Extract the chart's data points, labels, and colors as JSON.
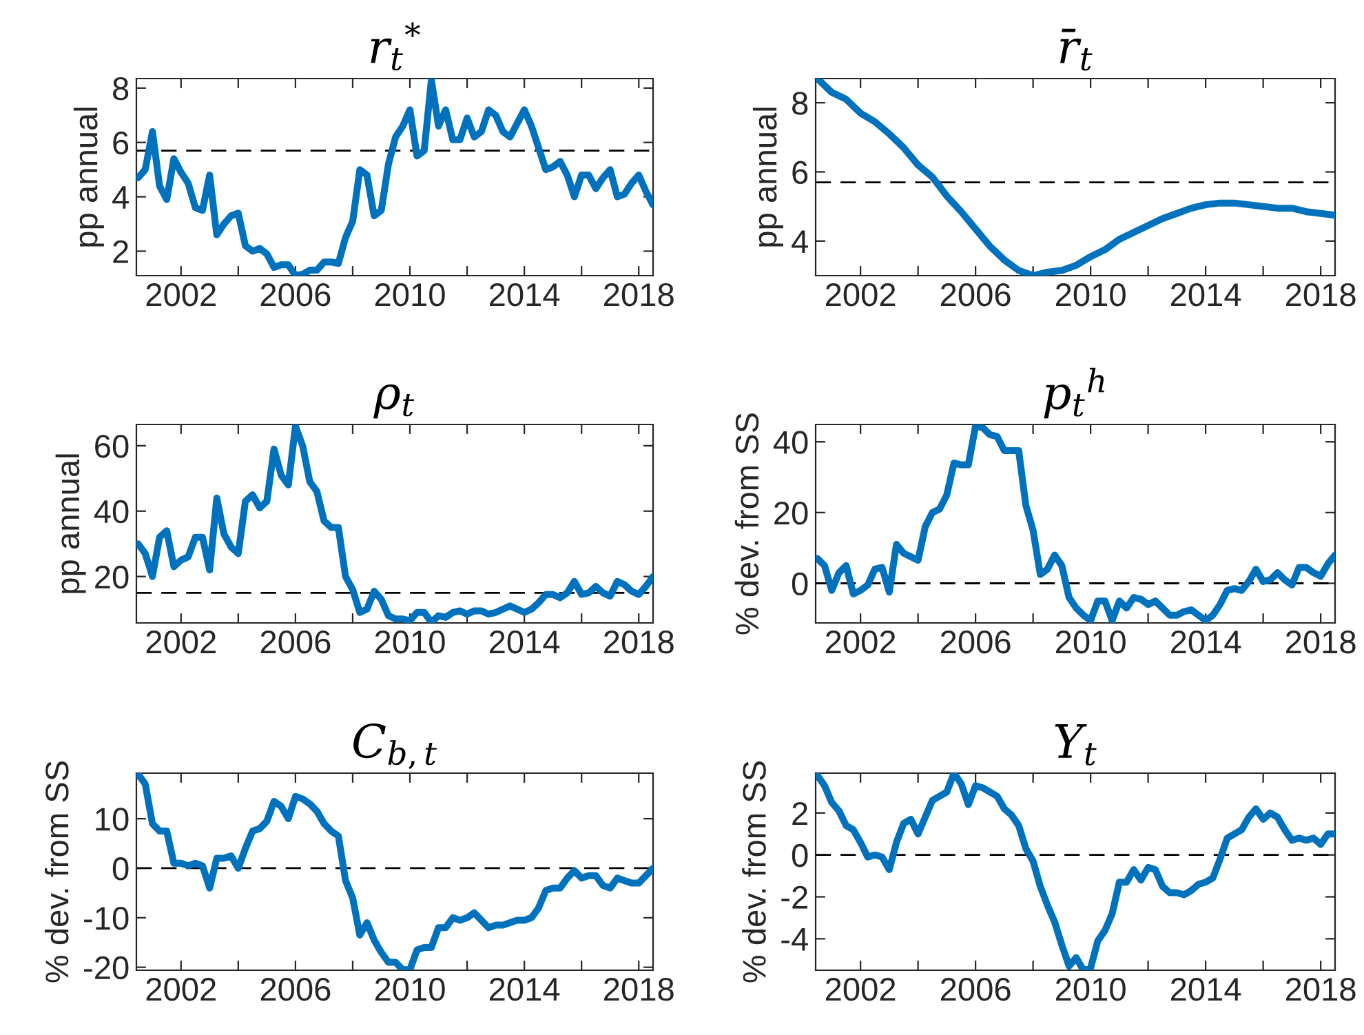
{
  "chart_data": [
    {
      "type": "line",
      "title": "r$_{t}$$^{*}$",
      "ylabel": "pp annual",
      "xlim": [
        2000.44,
        2018.5
      ],
      "ylim": [
        1.1,
        8.35
      ],
      "yticks": [
        2,
        4,
        6,
        8
      ],
      "xticks": [
        2002,
        {
          "value": 2004,
          "label": null
        },
        2006,
        {
          "value": 2008,
          "label": null
        },
        2010,
        {
          "value": 2012,
          "label": null
        },
        2014,
        {
          "value": 2016,
          "label": null
        },
        2018
      ],
      "grid": false,
      "line_style": "solid",
      "marker": "none",
      "ref_lines": [
        {
          "axis": "y",
          "value": 5.7,
          "color": "#000000",
          "line_style": "dashed"
        }
      ],
      "x": [
        2000.5,
        2000.75,
        2001,
        2001.25,
        2001.5,
        2001.75,
        2002,
        2002.25,
        2002.5,
        2002.75,
        2003,
        2003.25,
        2003.5,
        2003.75,
        2004,
        2004.25,
        2004.5,
        2004.75,
        2005,
        2005.25,
        2005.5,
        2005.75,
        2006,
        2006.25,
        2006.5,
        2006.75,
        2007,
        2007.25,
        2007.5,
        2007.75,
        2008,
        2008.25,
        2008.5,
        2008.75,
        2009,
        2009.25,
        2009.5,
        2009.75,
        2010,
        2010.25,
        2010.5,
        2010.75,
        2011,
        2011.25,
        2011.5,
        2011.75,
        2012,
        2012.25,
        2012.5,
        2012.75,
        2013,
        2013.25,
        2013.5,
        2013.75,
        2014,
        2014.25,
        2014.5,
        2014.75,
        2015,
        2015.25,
        2015.5,
        2015.75,
        2016,
        2016.25,
        2016.5,
        2016.75,
        2017,
        2017.25,
        2017.5,
        2017.75,
        2018,
        2018.25,
        2018.5
      ],
      "series": [
        {
          "color": "#0072bd",
          "values": [
            4.7,
            5.0,
            6.4,
            4.4,
            3.9,
            5.4,
            4.9,
            4.5,
            3.6,
            3.5,
            4.8,
            2.6,
            3.0,
            3.3,
            3.4,
            2.2,
            2.0,
            2.1,
            1.9,
            1.4,
            1.5,
            1.5,
            1.1,
            1.15,
            1.3,
            1.3,
            1.6,
            1.6,
            1.55,
            2.5,
            3.1,
            5.0,
            4.8,
            3.3,
            3.5,
            5.2,
            6.2,
            6.6,
            7.2,
            5.5,
            5.7,
            8.3,
            6.6,
            7.2,
            6.1,
            6.1,
            6.9,
            6.2,
            6.4,
            7.2,
            7.0,
            6.4,
            6.2,
            6.7,
            7.2,
            6.6,
            5.8,
            5.0,
            5.1,
            5.3,
            4.8,
            4.0,
            4.8,
            4.8,
            4.3,
            4.7,
            5.0,
            4.0,
            4.1,
            4.5,
            4.8,
            4.2,
            3.7
          ]
        }
      ]
    },
    {
      "type": "line",
      "title": "r̄$_{t}$",
      "ylabel": "pp annual",
      "xlim": [
        2000.44,
        2018.5
      ],
      "ylim": [
        3.0,
        8.7
      ],
      "yticks": [
        4,
        6,
        8
      ],
      "xticks": [
        2002,
        {
          "value": 2004,
          "label": null
        },
        2006,
        {
          "value": 2008,
          "label": null
        },
        2010,
        {
          "value": 2012,
          "label": null
        },
        2014,
        {
          "value": 2016,
          "label": null
        },
        2018
      ],
      "grid": false,
      "line_style": "solid",
      "marker": "none",
      "ref_lines": [
        {
          "axis": "y",
          "value": 5.7,
          "color": "#000000",
          "line_style": "dashed"
        }
      ],
      "x": [
        2000.5,
        2001,
        2001.5,
        2002,
        2002.5,
        2003,
        2003.5,
        2004,
        2004.5,
        2005,
        2005.5,
        2006,
        2006.5,
        2007,
        2007.5,
        2008,
        2008.5,
        2009,
        2009.5,
        2010,
        2010.5,
        2011,
        2011.5,
        2012,
        2012.5,
        2013,
        2013.5,
        2014,
        2014.5,
        2015,
        2015.5,
        2016,
        2016.5,
        2017,
        2017.5,
        2018,
        2018.5
      ],
      "series": [
        {
          "color": "#0072bd",
          "values": [
            8.7,
            8.3,
            8.1,
            7.7,
            7.45,
            7.1,
            6.7,
            6.2,
            5.85,
            5.3,
            4.85,
            4.35,
            3.85,
            3.45,
            3.15,
            3.0,
            3.1,
            3.15,
            3.3,
            3.55,
            3.75,
            4.05,
            4.25,
            4.45,
            4.65,
            4.8,
            4.95,
            5.05,
            5.1,
            5.1,
            5.05,
            5.0,
            4.95,
            4.95,
            4.85,
            4.8,
            4.75
          ]
        }
      ]
    },
    {
      "type": "line",
      "title": "ρ$_{t}$",
      "ylabel": "pp annual",
      "xlim": [
        2000.44,
        2018.5
      ],
      "ylim": [
        5.8,
        66.5
      ],
      "yticks": [
        20,
        40,
        60
      ],
      "xticks": [
        2002,
        {
          "value": 2004,
          "label": null
        },
        2006,
        {
          "value": 2008,
          "label": null
        },
        2010,
        {
          "value": 2012,
          "label": null
        },
        2014,
        {
          "value": 2016,
          "label": null
        },
        2018
      ],
      "grid": false,
      "line_style": "solid",
      "marker": "none",
      "ref_lines": [
        {
          "axis": "y",
          "value": 15,
          "color": "#000000",
          "line_style": "dashed"
        }
      ],
      "x": [
        2000.5,
        2000.75,
        2001,
        2001.25,
        2001.5,
        2001.75,
        2002,
        2002.25,
        2002.5,
        2002.75,
        2003,
        2003.25,
        2003.5,
        2003.75,
        2004,
        2004.25,
        2004.5,
        2004.75,
        2005,
        2005.25,
        2005.5,
        2005.75,
        2006,
        2006.25,
        2006.5,
        2006.75,
        2007,
        2007.25,
        2007.5,
        2007.75,
        2008,
        2008.25,
        2008.5,
        2008.75,
        2009,
        2009.25,
        2009.5,
        2009.75,
        2010,
        2010.25,
        2010.5,
        2010.75,
        2011,
        2011.25,
        2011.5,
        2011.75,
        2012,
        2012.25,
        2012.5,
        2012.75,
        2013,
        2013.25,
        2013.5,
        2013.75,
        2014,
        2014.25,
        2014.5,
        2014.75,
        2015,
        2015.25,
        2015.5,
        2015.75,
        2016,
        2016.25,
        2016.5,
        2016.75,
        2017,
        2017.25,
        2017.5,
        2017.75,
        2018,
        2018.25,
        2018.5
      ],
      "series": [
        {
          "color": "#0072bd",
          "values": [
            30,
            27,
            20,
            32,
            34,
            23,
            25,
            26,
            32,
            32,
            22,
            44,
            33,
            29,
            27,
            43,
            45,
            41,
            43,
            59,
            51,
            48,
            66,
            60,
            49,
            46,
            37,
            35,
            35,
            20,
            16,
            9,
            10,
            15.5,
            13,
            8,
            7,
            7,
            6.5,
            9,
            9,
            6,
            8,
            7.5,
            9,
            9.5,
            8.5,
            9.5,
            9.5,
            8.5,
            9,
            10,
            11,
            10,
            9,
            10,
            12,
            14.5,
            14.5,
            13.5,
            15,
            18.5,
            14.5,
            15,
            17,
            15,
            14,
            18.5,
            17.5,
            15.5,
            14.5,
            17,
            20
          ]
        }
      ]
    },
    {
      "type": "line",
      "title": "p$_{t}$$^{h}$",
      "ylabel": "% dev. from SS",
      "xlim": [
        2000.44,
        2018.5
      ],
      "ylim": [
        -11.2,
        44.9
      ],
      "yticks": [
        0,
        20,
        40
      ],
      "xticks": [
        2002,
        {
          "value": 2004,
          "label": null
        },
        2006,
        {
          "value": 2008,
          "label": null
        },
        2010,
        {
          "value": 2012,
          "label": null
        },
        2014,
        {
          "value": 2016,
          "label": null
        },
        2018
      ],
      "grid": false,
      "line_style": "solid",
      "marker": "none",
      "ref_lines": [
        {
          "axis": "y",
          "value": 0,
          "color": "#000000",
          "line_style": "dashed"
        }
      ],
      "x": [
        2000.5,
        2000.75,
        2001,
        2001.25,
        2001.5,
        2001.75,
        2002,
        2002.25,
        2002.5,
        2002.75,
        2003,
        2003.25,
        2003.5,
        2003.75,
        2004,
        2004.25,
        2004.5,
        2004.75,
        2005,
        2005.25,
        2005.5,
        2005.75,
        2006,
        2006.25,
        2006.5,
        2006.75,
        2007,
        2007.25,
        2007.5,
        2007.75,
        2008,
        2008.25,
        2008.5,
        2008.75,
        2009,
        2009.25,
        2009.5,
        2009.75,
        2010,
        2010.25,
        2010.5,
        2010.75,
        2011,
        2011.25,
        2011.5,
        2011.75,
        2012,
        2012.25,
        2012.5,
        2012.75,
        2013,
        2013.25,
        2013.5,
        2013.75,
        2014,
        2014.25,
        2014.5,
        2014.75,
        2015,
        2015.25,
        2015.5,
        2015.75,
        2016,
        2016.25,
        2016.5,
        2016.75,
        2017,
        2017.25,
        2017.5,
        2017.75,
        2018,
        2018.25,
        2018.5
      ],
      "series": [
        {
          "color": "#0072bd",
          "values": [
            7,
            5,
            -2,
            3,
            5,
            -3,
            -2,
            -0.5,
            4,
            4.5,
            -2.5,
            11,
            8.5,
            7.5,
            6.5,
            16,
            20,
            21,
            25,
            34,
            33.5,
            33.5,
            44.5,
            44,
            42,
            41.5,
            37.5,
            37.5,
            37.5,
            22,
            15,
            2.5,
            4,
            8,
            5,
            -4,
            -7,
            -9,
            -10.5,
            -5,
            -5,
            -10.5,
            -5,
            -7,
            -4,
            -4.5,
            -6,
            -5,
            -7,
            -9,
            -9,
            -8,
            -7.5,
            -9,
            -10.5,
            -9,
            -6,
            -2,
            -1.5,
            -2,
            0.5,
            4,
            0.5,
            1,
            3,
            1,
            -0.5,
            4.5,
            4.5,
            3,
            2,
            5.5,
            8
          ]
        }
      ]
    },
    {
      "type": "line",
      "title": "C$_{b,t}$",
      "ylabel": "% dev. from SS",
      "xlim": [
        2000.44,
        2018.5
      ],
      "ylim": [
        -20.6,
        19.2
      ],
      "yticks": [
        -20,
        -10,
        0,
        10
      ],
      "xticks": [
        2002,
        {
          "value": 2004,
          "label": null
        },
        2006,
        {
          "value": 2008,
          "label": null
        },
        2010,
        {
          "value": 2012,
          "label": null
        },
        2014,
        {
          "value": 2016,
          "label": null
        },
        2018
      ],
      "grid": false,
      "line_style": "solid",
      "marker": "none",
      "ref_lines": [
        {
          "axis": "y",
          "value": 0,
          "color": "#000000",
          "line_style": "dashed"
        }
      ],
      "x": [
        2000.5,
        2000.75,
        2001,
        2001.25,
        2001.5,
        2001.75,
        2002,
        2002.25,
        2002.5,
        2002.75,
        2003,
        2003.25,
        2003.5,
        2003.75,
        2004,
        2004.25,
        2004.5,
        2004.75,
        2005,
        2005.25,
        2005.5,
        2005.75,
        2006,
        2006.25,
        2006.5,
        2006.75,
        2007,
        2007.25,
        2007.5,
        2007.75,
        2008,
        2008.25,
        2008.5,
        2008.75,
        2009,
        2009.25,
        2009.5,
        2009.75,
        2010,
        2010.25,
        2010.5,
        2010.75,
        2011,
        2011.25,
        2011.5,
        2011.75,
        2012,
        2012.25,
        2012.5,
        2012.75,
        2013,
        2013.25,
        2013.5,
        2013.75,
        2014,
        2014.25,
        2014.5,
        2014.75,
        2015,
        2015.25,
        2015.5,
        2015.75,
        2016,
        2016.25,
        2016.5,
        2016.75,
        2017,
        2017.25,
        2017.5,
        2017.75,
        2018,
        2018.25,
        2018.5
      ],
      "series": [
        {
          "color": "#0072bd",
          "values": [
            19,
            17,
            9,
            7.5,
            7.5,
            1,
            1,
            0.5,
            1,
            0.5,
            -4,
            2,
            2,
            2.5,
            0,
            4,
            7.5,
            8,
            9.5,
            13.5,
            12.5,
            10,
            14.5,
            14,
            13,
            11.5,
            9,
            7.5,
            6.5,
            -2.5,
            -6,
            -13.5,
            -11,
            -14.5,
            -17,
            -19,
            -19,
            -20.5,
            -20.5,
            -16.5,
            -16,
            -16,
            -12,
            -12,
            -10,
            -10.5,
            -10,
            -9,
            -10.5,
            -12,
            -11.5,
            -11.5,
            -11,
            -10.5,
            -10.5,
            -10,
            -8,
            -4.5,
            -4,
            -4,
            -2,
            -0.5,
            -2,
            -1.5,
            -1.5,
            -3.5,
            -4,
            -2,
            -2.5,
            -3,
            -3,
            -1.5,
            0
          ]
        }
      ]
    },
    {
      "type": "line",
      "title": "Y$_{t}$",
      "ylabel": "% dev. from SS",
      "xlim": [
        2000.44,
        2018.5
      ],
      "ylim": [
        -5.5,
        3.9
      ],
      "yticks": [
        -4,
        -2,
        0,
        2
      ],
      "xticks": [
        2002,
        {
          "value": 2004,
          "label": null
        },
        2006,
        {
          "value": 2008,
          "label": null
        },
        2010,
        {
          "value": 2012,
          "label": null
        },
        2014,
        {
          "value": 2016,
          "label": null
        },
        2018
      ],
      "grid": false,
      "line_style": "solid",
      "marker": "none",
      "ref_lines": [
        {
          "axis": "y",
          "value": 0,
          "color": "#000000",
          "line_style": "dashed"
        }
      ],
      "x": [
        2000.5,
        2000.75,
        2001,
        2001.25,
        2001.5,
        2001.75,
        2002,
        2002.25,
        2002.5,
        2002.75,
        2003,
        2003.25,
        2003.5,
        2003.75,
        2004,
        2004.25,
        2004.5,
        2004.75,
        2005,
        2005.25,
        2005.5,
        2005.75,
        2006,
        2006.25,
        2006.5,
        2006.75,
        2007,
        2007.25,
        2007.5,
        2007.75,
        2008,
        2008.25,
        2008.5,
        2008.75,
        2009,
        2009.25,
        2009.5,
        2009.75,
        2010,
        2010.25,
        2010.5,
        2010.75,
        2011,
        2011.25,
        2011.5,
        2011.75,
        2012,
        2012.25,
        2012.5,
        2012.75,
        2013,
        2013.25,
        2013.5,
        2013.75,
        2014,
        2014.25,
        2014.5,
        2014.75,
        2015,
        2015.25,
        2015.5,
        2015.75,
        2016,
        2016.25,
        2016.5,
        2016.75,
        2017,
        2017.25,
        2017.5,
        2017.75,
        2018,
        2018.25,
        2018.5
      ],
      "series": [
        {
          "color": "#0072bd",
          "values": [
            3.8,
            3.3,
            2.5,
            2.1,
            1.4,
            1.2,
            0.6,
            -0.1,
            0,
            -0.1,
            -0.7,
            0.6,
            1.5,
            1.7,
            1.0,
            1.8,
            2.6,
            2.8,
            3.0,
            3.9,
            3.4,
            2.4,
            3.3,
            3.2,
            3.0,
            2.8,
            2.2,
            1.9,
            1.4,
            0.3,
            -0.3,
            -1.5,
            -2.4,
            -3.2,
            -4.3,
            -5.3,
            -4.9,
            -5.5,
            -5.4,
            -4.1,
            -3.6,
            -2.8,
            -1.3,
            -1.3,
            -0.7,
            -1.2,
            -0.6,
            -0.7,
            -1.5,
            -1.8,
            -1.8,
            -1.9,
            -1.7,
            -1.4,
            -1.3,
            -1.1,
            -0.2,
            0.8,
            1.0,
            1.2,
            1.8,
            2.2,
            1.7,
            2.0,
            1.8,
            1.2,
            0.7,
            0.8,
            0.7,
            0.8,
            0.5,
            1.0,
            1.0
          ]
        }
      ]
    }
  ]
}
